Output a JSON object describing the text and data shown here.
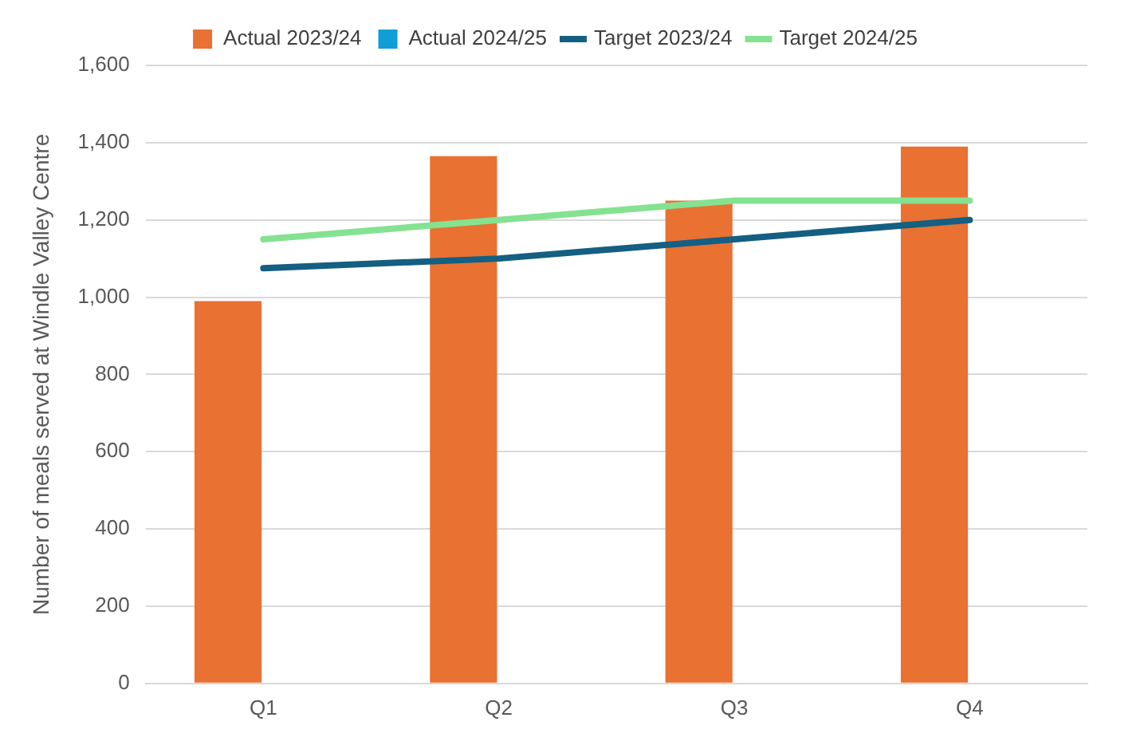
{
  "chart_data": {
    "type": "bar",
    "ylabel": "Number of meals served at Windle Valley Centre",
    "categories": [
      "Q1",
      "Q2",
      "Q3",
      "Q4"
    ],
    "series": [
      {
        "name": "Actual 2023/24",
        "color": "#e97132",
        "values": [
          990,
          1365,
          1250,
          1390
        ]
      },
      {
        "name": "Actual 2024/25",
        "color": "#0f9ed5",
        "values": [
          null,
          null,
          null,
          null
        ]
      },
      {
        "name": "Target 2023/24",
        "type": "line",
        "color": "#145f82",
        "values": [
          1075,
          1100,
          1150,
          1200
        ]
      },
      {
        "name": "Target 2024/25",
        "type": "line",
        "color": "#84e291",
        "values": [
          1150,
          1200,
          1250,
          1250
        ]
      }
    ],
    "ylim": [
      0,
      1600
    ],
    "yticks": [
      0,
      200,
      400,
      600,
      800,
      {
        "value": 1000,
        "label": "1,000"
      },
      {
        "value": 1200,
        "label": "1,200"
      },
      {
        "value": 1400,
        "label": "1,400"
      },
      {
        "value": 1600,
        "label": "1,600"
      }
    ],
    "grid": "y",
    "legend": "top",
    "marker": "none"
  }
}
